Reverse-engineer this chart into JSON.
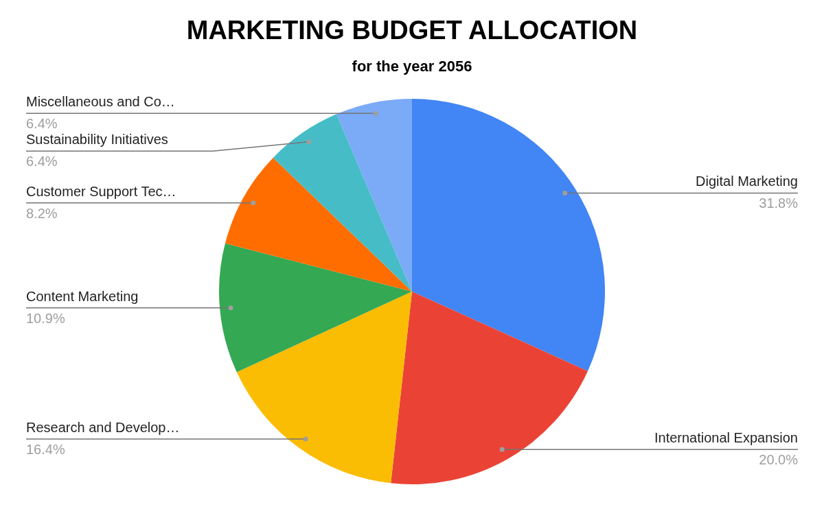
{
  "chart_data": {
    "type": "pie",
    "title": "MARKETING BUDGET ALLOCATION",
    "subtitle": "for the year 2056",
    "categories": [
      "Digital Marketing",
      "International Expansion",
      "Research and Develop…",
      "Content Marketing",
      "Customer Support Tec…",
      "Sustainability Initiatives",
      "Miscellaneous and Co…"
    ],
    "values": [
      31.8,
      20.0,
      16.4,
      10.9,
      8.2,
      6.4,
      6.4
    ],
    "value_labels": [
      "31.8%",
      "20.0%",
      "16.4%",
      "10.9%",
      "8.2%",
      "6.4%",
      "6.4%"
    ],
    "colors": [
      "#4285f4",
      "#ea4335",
      "#fbbc04",
      "#34a853",
      "#ff6d01",
      "#46bdc6",
      "#7baaf7"
    ]
  }
}
